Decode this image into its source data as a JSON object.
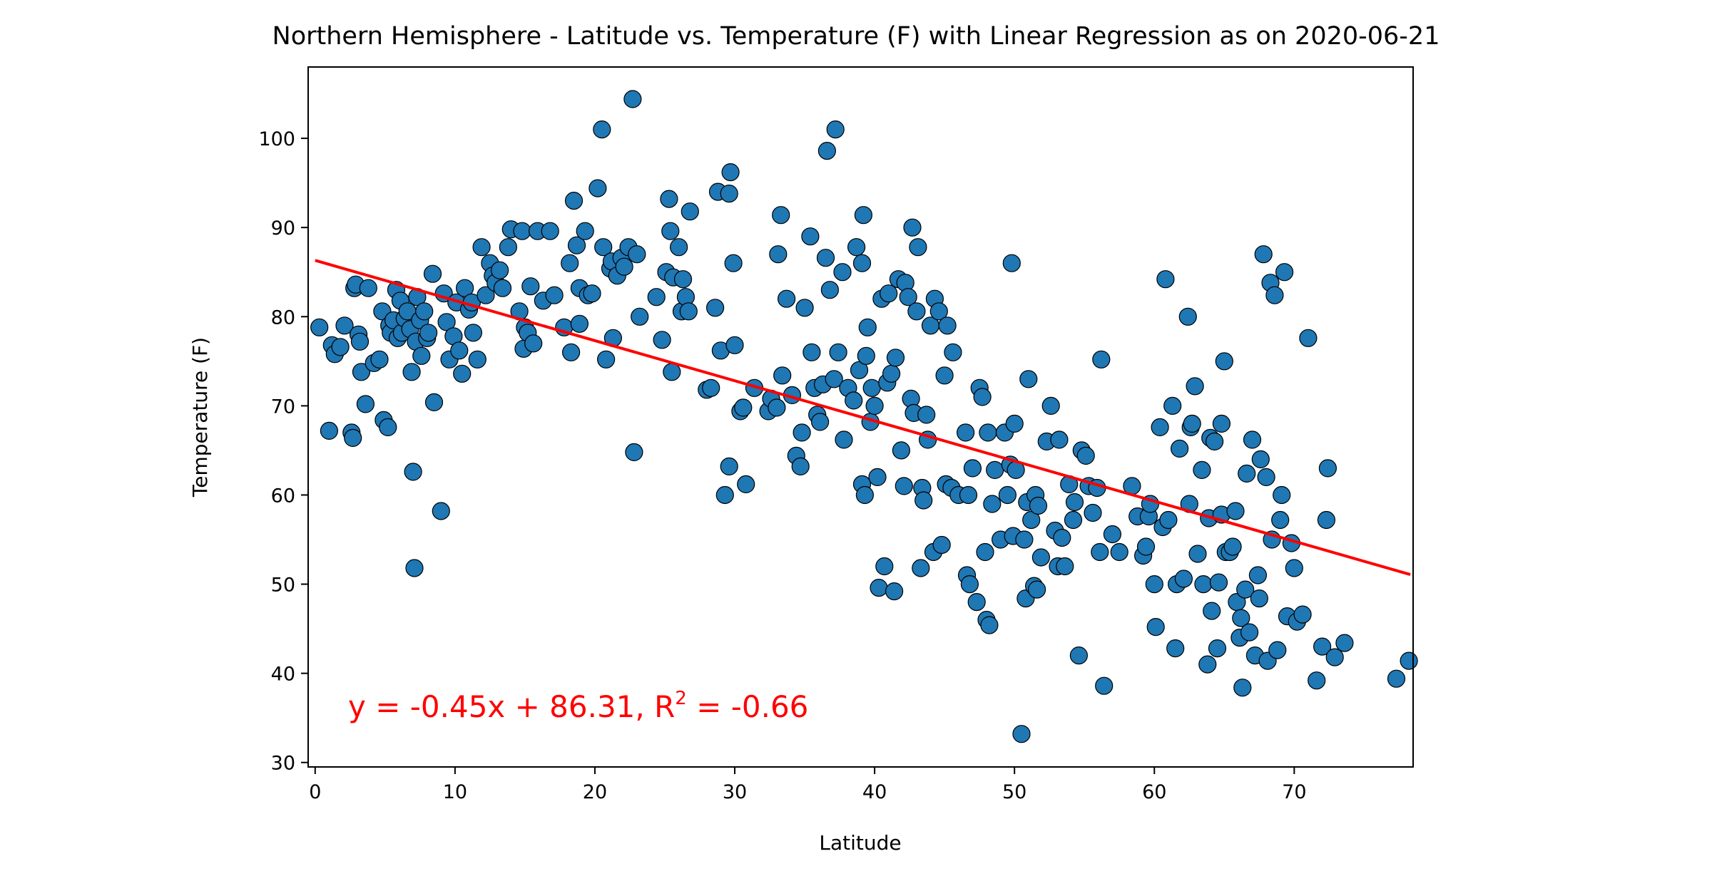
{
  "chart_data": {
    "type": "scatter",
    "title": "Northern Hemisphere - Latitude vs. Temperature (F) with Linear Regression as on 2020-06-21",
    "xlabel": "Latitude",
    "ylabel": "Temperature (F)",
    "xlim": [
      -0.5,
      78.5
    ],
    "ylim": [
      29.5,
      108
    ],
    "xticks": [
      0,
      10,
      20,
      30,
      40,
      50,
      60,
      70
    ],
    "yticks": [
      30,
      40,
      50,
      60,
      70,
      80,
      90,
      100
    ],
    "grid": false,
    "point_color": "#1f77b4",
    "point_edge_color": "#000000",
    "line_color": "#ff0000",
    "regression": {
      "slope": -0.45,
      "intercept": 86.31,
      "r_squared": -0.66,
      "x_range": [
        0,
        78.3
      ]
    },
    "annotation": {
      "prefix": "y = -0.45x + 86.31, R",
      "superscript": "2",
      "suffix": " = -0.66"
    },
    "points": [
      [
        0.3,
        78.8
      ],
      [
        1,
        67.2
      ],
      [
        1.2,
        76.8
      ],
      [
        1.4,
        75.8
      ],
      [
        1.8,
        76.6
      ],
      [
        2.1,
        79
      ],
      [
        2.6,
        67
      ],
      [
        2.7,
        66.4
      ],
      [
        2.8,
        83.2
      ],
      [
        2.9,
        83.6
      ],
      [
        3.1,
        78
      ],
      [
        3.2,
        77.2
      ],
      [
        3.3,
        73.8
      ],
      [
        3.6,
        70.2
      ],
      [
        3.8,
        83.2
      ],
      [
        4.2,
        74.8
      ],
      [
        4.6,
        75.2
      ],
      [
        4.8,
        80.6
      ],
      [
        4.9,
        68.4
      ],
      [
        5.2,
        67.6
      ],
      [
        5.3,
        79
      ],
      [
        5.4,
        78.2
      ],
      [
        5.6,
        79.6
      ],
      [
        5.8,
        83
      ],
      [
        5.9,
        77.6
      ],
      [
        6.1,
        81.8
      ],
      [
        6.2,
        78.2
      ],
      [
        6.4,
        79.8
      ],
      [
        6.6,
        80.6
      ],
      [
        6.8,
        78.6
      ],
      [
        6.9,
        73.8
      ],
      [
        7,
        62.6
      ],
      [
        7.1,
        51.8
      ],
      [
        7.2,
        77.2
      ],
      [
        7.3,
        82.2
      ],
      [
        7.5,
        79.6
      ],
      [
        7.6,
        75.6
      ],
      [
        7.8,
        80.6
      ],
      [
        8,
        77.6
      ],
      [
        8.1,
        78.2
      ],
      [
        8.4,
        84.8
      ],
      [
        8.5,
        70.4
      ],
      [
        9,
        58.2
      ],
      [
        9.2,
        82.6
      ],
      [
        9.4,
        79.4
      ],
      [
        9.6,
        75.2
      ],
      [
        9.9,
        77.8
      ],
      [
        10.1,
        81.6
      ],
      [
        10.3,
        76.2
      ],
      [
        10.5,
        73.6
      ],
      [
        10.7,
        83.2
      ],
      [
        11,
        80.8
      ],
      [
        11.2,
        81.6
      ],
      [
        11.3,
        78.2
      ],
      [
        11.6,
        75.2
      ],
      [
        11.9,
        87.8
      ],
      [
        12.2,
        82.4
      ],
      [
        12.5,
        86
      ],
      [
        12.7,
        84.6
      ],
      [
        12.9,
        83.8
      ],
      [
        13.2,
        85.2
      ],
      [
        13.4,
        83.2
      ],
      [
        13.8,
        87.8
      ],
      [
        14,
        89.8
      ],
      [
        14.6,
        80.6
      ],
      [
        14.8,
        89.6
      ],
      [
        14.9,
        76.4
      ],
      [
        15,
        78.8
      ],
      [
        15.2,
        78.2
      ],
      [
        15.4,
        83.4
      ],
      [
        15.6,
        77
      ],
      [
        15.9,
        89.6
      ],
      [
        16.3,
        81.8
      ],
      [
        16.8,
        89.6
      ],
      [
        17.1,
        82.4
      ],
      [
        17.8,
        78.8
      ],
      [
        18.2,
        86
      ],
      [
        18.3,
        76
      ],
      [
        18.5,
        93
      ],
      [
        18.7,
        88
      ],
      [
        18.9,
        79.2
      ],
      [
        18.9,
        83.2
      ],
      [
        19.3,
        89.6
      ],
      [
        19.5,
        82.4
      ],
      [
        19.8,
        82.6
      ],
      [
        20.2,
        94.4
      ],
      [
        20.5,
        101
      ],
      [
        20.6,
        87.8
      ],
      [
        20.8,
        75.2
      ],
      [
        21.1,
        85.4
      ],
      [
        21.2,
        86.2
      ],
      [
        21.3,
        77.6
      ],
      [
        21.6,
        84.6
      ],
      [
        21.9,
        86.6
      ],
      [
        22.1,
        85.6
      ],
      [
        22.4,
        87.8
      ],
      [
        22.7,
        104.4
      ],
      [
        22.8,
        64.8
      ],
      [
        23,
        87
      ],
      [
        23.2,
        80
      ],
      [
        24.4,
        82.2
      ],
      [
        24.8,
        77.4
      ],
      [
        25.1,
        85
      ],
      [
        25.3,
        93.2
      ],
      [
        25.4,
        89.6
      ],
      [
        25.5,
        73.8
      ],
      [
        25.6,
        84.4
      ],
      [
        26,
        87.8
      ],
      [
        26.2,
        80.6
      ],
      [
        26.3,
        84.2
      ],
      [
        26.5,
        82.2
      ],
      [
        26.7,
        80.6
      ],
      [
        26.8,
        91.8
      ],
      [
        28,
        71.8
      ],
      [
        28.3,
        72
      ],
      [
        28.6,
        81
      ],
      [
        28.8,
        94
      ],
      [
        29,
        76.2
      ],
      [
        29.3,
        60
      ],
      [
        29.6,
        63.2
      ],
      [
        29.6,
        93.8
      ],
      [
        29.7,
        96.2
      ],
      [
        29.9,
        86
      ],
      [
        30,
        76.8
      ],
      [
        30.4,
        69.4
      ],
      [
        30.6,
        69.8
      ],
      [
        30.8,
        61.2
      ],
      [
        31.4,
        72
      ],
      [
        32.4,
        69.4
      ],
      [
        32.6,
        70.8
      ],
      [
        33,
        69.8
      ],
      [
        33.1,
        87
      ],
      [
        33.3,
        91.4
      ],
      [
        33.4,
        73.4
      ],
      [
        33.7,
        82
      ],
      [
        34.1,
        71.2
      ],
      [
        34.4,
        64.4
      ],
      [
        34.7,
        63.2
      ],
      [
        34.8,
        67
      ],
      [
        35,
        81
      ],
      [
        35.4,
        89
      ],
      [
        35.5,
        76
      ],
      [
        35.7,
        72
      ],
      [
        35.9,
        69
      ],
      [
        36.1,
        68.2
      ],
      [
        36.3,
        72.4
      ],
      [
        36.5,
        86.6
      ],
      [
        36.6,
        98.6
      ],
      [
        36.8,
        83
      ],
      [
        37.1,
        73
      ],
      [
        37.2,
        101
      ],
      [
        37.4,
        76
      ],
      [
        37.7,
        85
      ],
      [
        37.8,
        66.2
      ],
      [
        38.1,
        72
      ],
      [
        38.5,
        70.6
      ],
      [
        38.7,
        87.8
      ],
      [
        38.9,
        74
      ],
      [
        39.1,
        86
      ],
      [
        39.1,
        61.2
      ],
      [
        39.2,
        91.4
      ],
      [
        39.3,
        60
      ],
      [
        39.4,
        75.6
      ],
      [
        39.5,
        78.8
      ],
      [
        39.7,
        68.2
      ],
      [
        39.8,
        72
      ],
      [
        40,
        70
      ],
      [
        40.2,
        62
      ],
      [
        40.3,
        49.6
      ],
      [
        40.5,
        82
      ],
      [
        40.7,
        52
      ],
      [
        40.9,
        72.6
      ],
      [
        41,
        82.6
      ],
      [
        41.2,
        73.6
      ],
      [
        41.4,
        49.2
      ],
      [
        41.5,
        75.4
      ],
      [
        41.7,
        84.2
      ],
      [
        41.9,
        65
      ],
      [
        42.1,
        61
      ],
      [
        42.2,
        83.8
      ],
      [
        42.4,
        82.2
      ],
      [
        42.6,
        70.8
      ],
      [
        42.7,
        90
      ],
      [
        42.8,
        69.2
      ],
      [
        43,
        80.6
      ],
      [
        43.1,
        87.8
      ],
      [
        43.3,
        51.8
      ],
      [
        43.4,
        60.8
      ],
      [
        43.5,
        59.4
      ],
      [
        43.7,
        69
      ],
      [
        43.8,
        66.2
      ],
      [
        44,
        79
      ],
      [
        44.2,
        53.6
      ],
      [
        44.3,
        82
      ],
      [
        44.6,
        80.6
      ],
      [
        44.8,
        54.4
      ],
      [
        45,
        73.4
      ],
      [
        45.1,
        61.2
      ],
      [
        45.2,
        79
      ],
      [
        45.5,
        60.8
      ],
      [
        45.6,
        76
      ],
      [
        46,
        60
      ],
      [
        46.5,
        67
      ],
      [
        46.6,
        51
      ],
      [
        46.7,
        60
      ],
      [
        46.8,
        50
      ],
      [
        47,
        63
      ],
      [
        47.3,
        48
      ],
      [
        47.5,
        72
      ],
      [
        47.7,
        71
      ],
      [
        47.9,
        53.6
      ],
      [
        48,
        46
      ],
      [
        48.1,
        67
      ],
      [
        48.2,
        45.4
      ],
      [
        48.4,
        59
      ],
      [
        48.6,
        62.8
      ],
      [
        49,
        55
      ],
      [
        49.3,
        67
      ],
      [
        49.5,
        60
      ],
      [
        49.7,
        63.4
      ],
      [
        49.9,
        55.4
      ],
      [
        49.8,
        86
      ],
      [
        50,
        68
      ],
      [
        50.1,
        62.8
      ],
      [
        50.5,
        33.2
      ],
      [
        50.7,
        55
      ],
      [
        50.8,
        48.4
      ],
      [
        50.9,
        59.2
      ],
      [
        51,
        73
      ],
      [
        51.2,
        57.2
      ],
      [
        51.4,
        49.8
      ],
      [
        51.5,
        60
      ],
      [
        51.6,
        49.4
      ],
      [
        51.7,
        58.8
      ],
      [
        51.9,
        53
      ],
      [
        52.3,
        66
      ],
      [
        52.6,
        70
      ],
      [
        52.9,
        56
      ],
      [
        53.1,
        52
      ],
      [
        53.2,
        66.2
      ],
      [
        53.4,
        55.2
      ],
      [
        53.6,
        52
      ],
      [
        53.9,
        61.2
      ],
      [
        54.2,
        57.2
      ],
      [
        54.3,
        59.2
      ],
      [
        54.6,
        42
      ],
      [
        54.8,
        65
      ],
      [
        55.1,
        64.4
      ],
      [
        55.3,
        61
      ],
      [
        55.6,
        58
      ],
      [
        55.9,
        60.8
      ],
      [
        56.1,
        53.6
      ],
      [
        56.2,
        75.2
      ],
      [
        56.4,
        38.6
      ],
      [
        57,
        55.6
      ],
      [
        57.5,
        53.6
      ],
      [
        58.4,
        61
      ],
      [
        58.8,
        57.6
      ],
      [
        59.2,
        53.2
      ],
      [
        59.4,
        54.2
      ],
      [
        59.6,
        57.6
      ],
      [
        59.7,
        59
      ],
      [
        60,
        50
      ],
      [
        60.1,
        45.2
      ],
      [
        60.4,
        67.6
      ],
      [
        60.6,
        56.4
      ],
      [
        60.8,
        84.2
      ],
      [
        61,
        57.2
      ],
      [
        61.3,
        70
      ],
      [
        61.5,
        42.8
      ],
      [
        61.6,
        50
      ],
      [
        61.8,
        65.2
      ],
      [
        62.1,
        50.6
      ],
      [
        62.4,
        80
      ],
      [
        62.5,
        59
      ],
      [
        62.6,
        67.6
      ],
      [
        62.7,
        68
      ],
      [
        62.9,
        72.2
      ],
      [
        63.1,
        53.4
      ],
      [
        63.4,
        62.8
      ],
      [
        63.5,
        50
      ],
      [
        63.8,
        41
      ],
      [
        63.9,
        57.4
      ],
      [
        64,
        66.4
      ],
      [
        64.1,
        47
      ],
      [
        64.3,
        66
      ],
      [
        64.5,
        42.8
      ],
      [
        64.6,
        50.2
      ],
      [
        64.8,
        57.8
      ],
      [
        64.8,
        68
      ],
      [
        65,
        75
      ],
      [
        65.1,
        53.6
      ],
      [
        65.4,
        53.6
      ],
      [
        65.6,
        54.2
      ],
      [
        65.8,
        58.2
      ],
      [
        65.9,
        48
      ],
      [
        66.1,
        44
      ],
      [
        66.2,
        46.2
      ],
      [
        66.3,
        38.4
      ],
      [
        66.5,
        49.4
      ],
      [
        66.6,
        62.4
      ],
      [
        66.8,
        44.6
      ],
      [
        67,
        66.2
      ],
      [
        67.2,
        42
      ],
      [
        67.4,
        51
      ],
      [
        67.5,
        48.4
      ],
      [
        67.6,
        64
      ],
      [
        67.8,
        87
      ],
      [
        68,
        62
      ],
      [
        68.1,
        41.4
      ],
      [
        68.3,
        83.8
      ],
      [
        68.4,
        55
      ],
      [
        68.6,
        82.4
      ],
      [
        68.8,
        42.6
      ],
      [
        69,
        57.2
      ],
      [
        69.1,
        60
      ],
      [
        69.3,
        85
      ],
      [
        69.5,
        46.4
      ],
      [
        69.8,
        54.6
      ],
      [
        70,
        51.8
      ],
      [
        70.2,
        45.8
      ],
      [
        70.6,
        46.6
      ],
      [
        71,
        77.6
      ],
      [
        71.6,
        39.2
      ],
      [
        72,
        43
      ],
      [
        72.3,
        57.2
      ],
      [
        72.4,
        63
      ],
      [
        72.9,
        41.8
      ],
      [
        73.6,
        43.4
      ],
      [
        77.3,
        39.4
      ],
      [
        78.2,
        41.4
      ]
    ]
  }
}
